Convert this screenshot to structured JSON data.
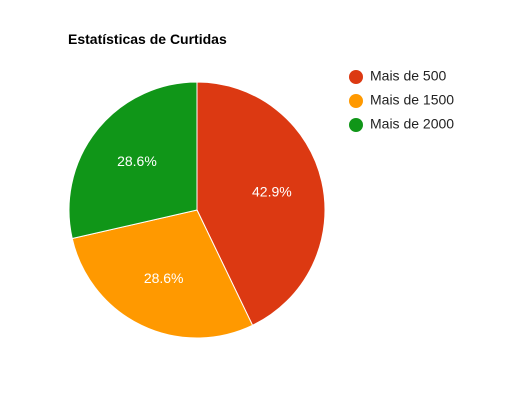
{
  "chart_data": {
    "type": "pie",
    "title": "Estatísticas de Curtidas",
    "slices": [
      {
        "label": "Mais de 500",
        "value": 42.9,
        "display": "42.9%",
        "color": "#dc3912"
      },
      {
        "label": "Mais de 1500",
        "value": 28.6,
        "display": "28.6%",
        "color": "#ff9900"
      },
      {
        "label": "Mais de 2000",
        "value": 28.6,
        "display": "28.6%",
        "color": "#109618"
      }
    ],
    "legend_position": "right"
  }
}
